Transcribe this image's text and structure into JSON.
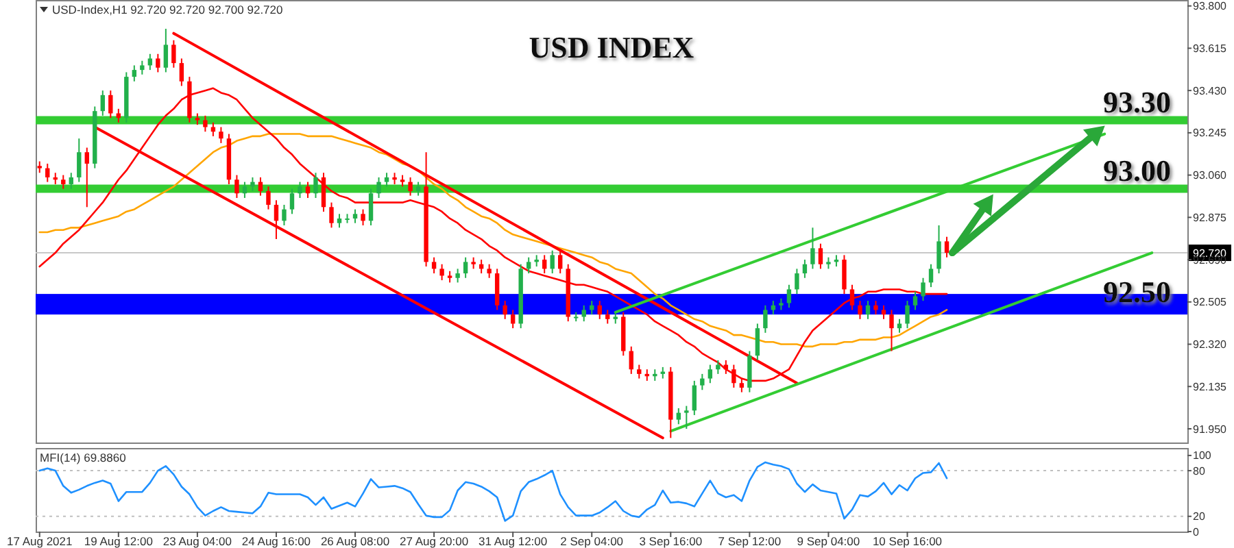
{
  "chart_data": [
    {
      "type": "candlestick",
      "title": "USD INDEX",
      "subtitle": "USD-Index,H1 92.720 92.720 92.700 92.720",
      "categories": [
        null,
        null,
        null,
        null,
        null,
        null,
        null,
        null,
        null,
        null,
        null,
        null,
        null,
        null,
        null,
        null,
        null,
        null,
        null,
        null,
        null,
        null,
        null,
        null,
        null,
        null,
        null,
        null,
        null,
        null,
        null,
        null,
        null,
        null,
        null,
        null,
        null,
        null,
        null,
        null,
        null,
        null,
        null,
        null,
        null,
        null,
        null,
        null,
        null,
        null,
        null,
        null,
        null,
        null,
        null,
        null,
        null,
        null,
        null,
        null,
        null,
        null,
        null,
        null,
        null,
        null,
        null,
        null,
        null,
        null,
        null,
        null,
        null,
        null,
        null,
        null,
        null,
        null,
        null,
        null,
        null,
        null,
        null,
        null,
        null,
        null,
        null,
        null,
        null,
        null,
        null,
        null,
        null,
        null,
        null,
        null,
        null,
        null,
        null,
        null,
        null,
        null,
        null,
        null,
        null,
        null,
        null,
        null,
        null,
        null,
        null,
        null,
        null,
        null,
        null,
        null,
        null,
        null,
        null,
        null,
        null,
        null,
        null,
        null,
        null,
        null,
        null,
        null,
        null,
        null,
        null,
        null,
        null,
        null,
        null,
        null,
        null,
        null,
        null,
        null,
        null,
        null,
        null,
        null,
        null,
        null
      ],
      "ohlc": [
        [
          93.1,
          93.12,
          93.07,
          93.09
        ],
        [
          93.09,
          93.11,
          93.03,
          93.05
        ],
        [
          93.05,
          93.07,
          93.02,
          93.04
        ],
        [
          93.04,
          93.06,
          93.0,
          93.02
        ],
        [
          93.02,
          93.07,
          93.0,
          93.05
        ],
        [
          93.05,
          93.22,
          93.03,
          93.16
        ],
        [
          93.16,
          93.18,
          92.92,
          93.11
        ],
        [
          93.11,
          93.36,
          93.09,
          93.34
        ],
        [
          93.34,
          93.43,
          93.32,
          93.41
        ],
        [
          93.41,
          93.43,
          93.31,
          93.33
        ],
        [
          93.33,
          93.35,
          93.29,
          93.31
        ],
        [
          93.31,
          93.51,
          93.29,
          93.49
        ],
        [
          93.49,
          93.54,
          93.47,
          93.52
        ],
        [
          93.52,
          93.56,
          93.5,
          93.54
        ],
        [
          93.54,
          93.59,
          93.52,
          93.57
        ],
        [
          93.57,
          93.59,
          93.51,
          93.53
        ],
        [
          93.53,
          93.7,
          93.51,
          93.63
        ],
        [
          93.63,
          93.65,
          93.53,
          93.55
        ],
        [
          93.55,
          93.57,
          93.45,
          93.47
        ],
        [
          93.47,
          93.49,
          93.29,
          93.31
        ],
        [
          93.31,
          93.33,
          93.28,
          93.3
        ],
        [
          93.3,
          93.32,
          93.25,
          93.27
        ],
        [
          93.27,
          93.29,
          93.23,
          93.25
        ],
        [
          93.25,
          93.27,
          93.2,
          93.22
        ],
        [
          93.22,
          93.24,
          93.02,
          93.04
        ],
        [
          93.04,
          93.06,
          92.96,
          92.98
        ],
        [
          92.98,
          93.03,
          92.96,
          93.01
        ],
        [
          93.01,
          93.05,
          92.99,
          93.03
        ],
        [
          93.03,
          93.05,
          92.97,
          92.99
        ],
        [
          92.99,
          93.01,
          92.91,
          92.93
        ],
        [
          92.93,
          92.95,
          92.78,
          92.86
        ],
        [
          92.86,
          92.93,
          92.84,
          92.91
        ],
        [
          92.91,
          93.0,
          92.89,
          92.98
        ],
        [
          92.98,
          93.03,
          92.96,
          93.01
        ],
        [
          93.01,
          93.03,
          92.96,
          92.98
        ],
        [
          92.98,
          93.07,
          92.96,
          93.05
        ],
        [
          93.05,
          93.07,
          92.9,
          92.92
        ],
        [
          92.92,
          92.94,
          92.83,
          92.85
        ],
        [
          92.85,
          92.89,
          92.83,
          92.87
        ],
        [
          92.87,
          92.89,
          92.85,
          92.87
        ],
        [
          92.87,
          92.91,
          92.85,
          92.89
        ],
        [
          92.89,
          92.91,
          92.84,
          92.86
        ],
        [
          92.86,
          93.0,
          92.84,
          92.98
        ],
        [
          92.98,
          93.05,
          92.96,
          93.03
        ],
        [
          93.03,
          93.07,
          93.01,
          93.05
        ],
        [
          93.05,
          93.07,
          93.02,
          93.04
        ],
        [
          93.04,
          93.06,
          93.01,
          93.03
        ],
        [
          93.03,
          93.05,
          92.97,
          92.99
        ],
        [
          92.99,
          93.03,
          92.97,
          93.01
        ],
        [
          93.01,
          93.16,
          92.66,
          92.68
        ],
        [
          92.68,
          92.7,
          92.63,
          92.65
        ],
        [
          92.65,
          92.67,
          92.6,
          92.62
        ],
        [
          92.62,
          92.64,
          92.59,
          92.61
        ],
        [
          92.61,
          92.65,
          92.59,
          92.63
        ],
        [
          92.63,
          92.7,
          92.61,
          92.68
        ],
        [
          92.68,
          92.7,
          92.65,
          92.67
        ],
        [
          92.67,
          92.69,
          92.63,
          92.65
        ],
        [
          92.65,
          92.67,
          92.61,
          92.63
        ],
        [
          92.63,
          92.65,
          92.47,
          92.49
        ],
        [
          92.49,
          92.51,
          92.43,
          92.45
        ],
        [
          92.45,
          92.47,
          92.39,
          92.41
        ],
        [
          92.41,
          92.67,
          92.39,
          92.65
        ],
        [
          92.65,
          92.7,
          92.63,
          92.68
        ],
        [
          92.68,
          92.71,
          92.66,
          92.69
        ],
        [
          92.69,
          92.71,
          92.63,
          92.65
        ],
        [
          92.65,
          92.73,
          92.63,
          92.71
        ],
        [
          92.71,
          92.73,
          92.63,
          92.65
        ],
        [
          92.65,
          92.67,
          92.42,
          92.44
        ],
        [
          92.44,
          92.46,
          92.42,
          92.44
        ],
        [
          92.44,
          92.49,
          92.42,
          92.47
        ],
        [
          92.47,
          92.51,
          92.45,
          92.49
        ],
        [
          92.49,
          92.51,
          92.43,
          92.45
        ],
        [
          92.45,
          92.47,
          92.41,
          92.43
        ],
        [
          92.43,
          92.46,
          92.41,
          92.44
        ],
        [
          92.44,
          92.46,
          92.27,
          92.29
        ],
        [
          92.29,
          92.31,
          92.19,
          92.21
        ],
        [
          92.21,
          92.23,
          92.17,
          92.19
        ],
        [
          92.19,
          92.21,
          92.16,
          92.18
        ],
        [
          92.18,
          92.21,
          92.16,
          92.19
        ],
        [
          92.19,
          92.22,
          92.17,
          92.2
        ],
        [
          92.2,
          92.22,
          91.91,
          91.99
        ],
        [
          91.99,
          92.04,
          91.97,
          92.02
        ],
        [
          92.02,
          92.05,
          91.95,
          92.03
        ],
        [
          92.03,
          92.16,
          92.01,
          92.14
        ],
        [
          92.14,
          92.19,
          92.12,
          92.17
        ],
        [
          92.17,
          92.23,
          92.15,
          92.21
        ],
        [
          92.21,
          92.25,
          92.19,
          92.23
        ],
        [
          92.23,
          92.25,
          92.19,
          92.21
        ],
        [
          92.21,
          92.23,
          92.13,
          92.15
        ],
        [
          92.15,
          92.17,
          92.11,
          92.13
        ],
        [
          92.13,
          92.29,
          92.11,
          92.27
        ],
        [
          92.27,
          92.41,
          92.25,
          92.39
        ],
        [
          92.39,
          92.49,
          92.37,
          92.47
        ],
        [
          92.47,
          92.51,
          92.45,
          92.49
        ],
        [
          92.49,
          92.52,
          92.47,
          92.5
        ],
        [
          92.5,
          92.58,
          92.48,
          92.56
        ],
        [
          92.56,
          92.65,
          92.54,
          92.63
        ],
        [
          92.63,
          92.69,
          92.61,
          92.67
        ],
        [
          92.67,
          92.83,
          92.65,
          92.74
        ],
        [
          92.74,
          92.76,
          92.65,
          92.67
        ],
        [
          92.67,
          92.7,
          92.65,
          92.68
        ],
        [
          92.68,
          92.71,
          92.66,
          92.69
        ],
        [
          92.69,
          92.71,
          92.54,
          92.56
        ],
        [
          92.56,
          92.58,
          92.47,
          92.49
        ],
        [
          92.49,
          92.51,
          92.43,
          92.45
        ],
        [
          92.45,
          92.51,
          92.43,
          92.49
        ],
        [
          92.49,
          92.51,
          92.45,
          92.47
        ],
        [
          92.47,
          92.49,
          92.43,
          92.45
        ],
        [
          92.45,
          92.47,
          92.29,
          92.39
        ],
        [
          92.39,
          92.43,
          92.37,
          92.41
        ],
        [
          92.41,
          92.51,
          92.39,
          92.49
        ],
        [
          92.49,
          92.55,
          92.47,
          92.53
        ],
        [
          92.53,
          92.61,
          92.51,
          92.59
        ],
        [
          92.59,
          92.67,
          92.57,
          92.65
        ],
        [
          92.65,
          92.84,
          92.63,
          92.77
        ],
        [
          92.77,
          92.79,
          92.7,
          92.72
        ],
        null,
        null,
        null,
        null,
        null,
        null,
        null,
        null,
        null,
        null,
        null,
        null,
        null,
        null,
        null,
        null,
        null,
        null,
        null,
        null,
        null,
        null,
        null,
        null,
        null,
        null,
        null,
        null,
        null,
        null
      ],
      "series": [
        {
          "type": "line",
          "color": "#ffa500",
          "values": [
            92.81,
            92.81,
            92.82,
            92.82,
            92.83,
            92.83,
            92.84,
            92.85,
            92.86,
            92.87,
            92.88,
            92.9,
            92.91,
            92.93,
            92.95,
            92.97,
            92.99,
            93.01,
            93.04,
            93.07,
            93.1,
            93.13,
            93.16,
            93.18,
            93.19,
            93.21,
            93.22,
            93.23,
            93.23,
            93.24,
            93.24,
            93.24,
            93.24,
            93.24,
            93.23,
            93.23,
            93.23,
            93.23,
            93.22,
            93.21,
            93.2,
            93.19,
            93.18,
            93.16,
            93.15,
            93.13,
            93.11,
            93.1,
            93.08,
            93.05,
            93.02,
            93.0,
            92.97,
            92.95,
            92.92,
            92.9,
            92.88,
            92.87,
            92.85,
            92.82,
            92.8,
            92.79,
            92.78,
            92.77,
            92.76,
            92.75,
            92.74,
            92.73,
            92.72,
            92.71,
            92.7,
            92.68,
            92.67,
            92.65,
            92.64,
            92.63,
            92.6,
            92.57,
            92.54,
            92.52,
            92.49,
            92.47,
            92.45,
            92.43,
            92.42,
            92.4,
            92.39,
            92.38,
            92.36,
            92.36,
            92.35,
            92.34,
            92.33,
            92.33,
            92.32,
            92.32,
            92.32,
            92.31,
            92.31,
            92.32,
            92.32,
            92.32,
            92.33,
            92.33,
            92.34,
            92.34,
            92.34,
            92.35,
            92.35,
            92.36,
            92.38,
            92.4,
            92.42,
            92.44,
            92.45,
            92.47,
            null,
            null,
            null,
            null,
            null,
            null,
            null,
            null,
            null,
            null,
            null,
            null,
            null,
            null,
            null,
            null,
            null,
            null,
            null,
            null,
            null,
            null,
            null,
            null,
            null,
            null,
            null,
            null,
            null,
            null
          ]
        },
        {
          "type": "line",
          "color": "#ff0000",
          "values": [
            92.66,
            92.69,
            92.72,
            92.76,
            92.79,
            92.82,
            92.86,
            92.9,
            92.94,
            92.99,
            93.04,
            93.08,
            93.13,
            93.18,
            93.23,
            93.28,
            93.32,
            93.35,
            93.39,
            93.41,
            93.42,
            93.43,
            93.44,
            93.42,
            93.41,
            93.39,
            93.35,
            93.31,
            93.28,
            93.25,
            93.22,
            93.18,
            93.15,
            93.11,
            93.08,
            93.05,
            93.02,
            92.99,
            92.97,
            92.96,
            92.94,
            92.94,
            92.94,
            92.94,
            92.94,
            92.94,
            92.94,
            92.95,
            92.94,
            92.93,
            92.92,
            92.9,
            92.87,
            92.85,
            92.82,
            92.8,
            92.78,
            92.75,
            92.73,
            92.7,
            92.68,
            92.66,
            92.64,
            92.63,
            92.62,
            92.61,
            92.6,
            92.59,
            92.58,
            92.58,
            92.57,
            92.56,
            92.55,
            92.53,
            92.51,
            92.49,
            92.47,
            92.45,
            92.42,
            92.4,
            92.38,
            92.36,
            92.33,
            92.31,
            92.28,
            92.26,
            92.24,
            92.21,
            92.19,
            92.17,
            92.16,
            92.16,
            92.16,
            92.17,
            92.19,
            92.21,
            92.27,
            92.33,
            92.38,
            92.41,
            92.44,
            92.47,
            92.5,
            92.52,
            92.53,
            92.55,
            92.55,
            92.56,
            92.56,
            92.56,
            92.55,
            92.55,
            92.54,
            92.54,
            92.54,
            92.54,
            null,
            null,
            null,
            null,
            null,
            null,
            null,
            null,
            null,
            null,
            null,
            null,
            null,
            null,
            null,
            null,
            null,
            null,
            null,
            null,
            null,
            null,
            null,
            null,
            null,
            null,
            null,
            null,
            null,
            null
          ]
        },
        {
          "type": "line",
          "color": "#ff0000",
          "values": [
            null,
            null,
            null,
            null,
            null,
            null,
            null,
            null,
            null,
            null,
            null,
            null,
            null,
            null,
            null,
            null,
            null,
            93.68,
            null,
            null,
            null,
            null,
            null,
            null,
            null,
            null,
            null,
            null,
            null,
            null,
            null,
            null,
            null,
            null,
            null,
            null,
            null,
            null,
            null,
            null,
            null,
            null,
            null,
            null,
            null,
            null,
            null,
            null,
            null,
            null,
            null,
            null,
            null,
            null,
            null,
            null,
            null,
            null,
            null,
            null,
            null,
            null,
            null,
            null,
            null,
            null,
            null,
            null,
            null,
            null,
            null,
            null,
            null,
            null,
            null,
            null,
            null,
            null,
            null,
            null,
            null,
            null,
            null,
            null,
            null,
            null,
            null,
            null,
            null,
            null,
            null,
            null,
            null,
            null,
            null,
            null,
            92.15,
            null,
            null,
            null,
            null,
            null,
            null,
            null,
            null,
            null,
            null,
            null,
            null,
            null,
            null,
            null,
            null,
            null,
            null,
            null,
            null,
            null,
            null,
            null,
            null,
            null,
            null,
            null,
            null,
            null,
            null,
            null,
            null,
            null,
            null,
            null,
            null,
            null,
            null,
            null,
            null,
            null,
            null,
            null,
            null,
            null,
            null,
            null,
            null,
            null
          ]
        },
        {
          "type": "line",
          "color": "#ff0000",
          "values": [
            null,
            null,
            null,
            null,
            null,
            null,
            null,
            93.27,
            null,
            null,
            null,
            null,
            null,
            null,
            null,
            null,
            null,
            null,
            null,
            null,
            null,
            null,
            null,
            null,
            null,
            null,
            null,
            null,
            null,
            null,
            null,
            null,
            null,
            null,
            null,
            null,
            null,
            null,
            null,
            null,
            null,
            null,
            null,
            null,
            null,
            null,
            null,
            null,
            null,
            null,
            null,
            null,
            null,
            null,
            null,
            null,
            null,
            null,
            null,
            null,
            null,
            null,
            null,
            null,
            null,
            null,
            null,
            null,
            null,
            null,
            null,
            null,
            null,
            null,
            null,
            null,
            null,
            null,
            null,
            91.91,
            null,
            null,
            null,
            null,
            null,
            null,
            null,
            null,
            null,
            null,
            null,
            null,
            null,
            null,
            null,
            null,
            null,
            null,
            null,
            null,
            null,
            null,
            null,
            null,
            null,
            null,
            null,
            null,
            null,
            null,
            null,
            null,
            null,
            null,
            null,
            null,
            null,
            null,
            null,
            null,
            null,
            null,
            null,
            null,
            null,
            null,
            null,
            null,
            null,
            null,
            null,
            null,
            null,
            null,
            null,
            null,
            null,
            null,
            null,
            null,
            null,
            null,
            null,
            null,
            null,
            null
          ]
        },
        {
          "type": "line",
          "color": "#33cc33",
          "values": [
            null,
            null,
            null,
            null,
            null,
            null,
            null,
            null,
            null,
            null,
            null,
            null,
            null,
            null,
            null,
            null,
            null,
            null,
            null,
            null,
            null,
            null,
            null,
            null,
            null,
            null,
            null,
            null,
            null,
            null,
            null,
            null,
            null,
            null,
            null,
            null,
            null,
            null,
            null,
            null,
            null,
            null,
            null,
            null,
            null,
            null,
            null,
            null,
            null,
            null,
            null,
            null,
            null,
            null,
            null,
            null,
            null,
            null,
            null,
            null,
            null,
            null,
            null,
            null,
            null,
            null,
            null,
            null,
            null,
            null,
            null,
            null,
            null,
            92.46,
            null,
            null,
            null,
            null,
            null,
            null,
            null,
            null,
            null,
            null,
            null,
            null,
            null,
            null,
            null,
            null,
            null,
            null,
            null,
            null,
            null,
            null,
            null,
            null,
            null,
            null,
            null,
            null,
            null,
            null,
            null,
            null,
            null,
            null,
            null,
            null,
            null,
            null,
            null,
            null,
            null,
            null,
            null,
            null,
            null,
            null,
            null,
            null,
            null,
            null,
            null,
            null,
            null,
            null,
            null,
            null,
            null,
            null,
            null,
            null,
            null,
            93.24,
            null,
            null,
            null,
            null,
            null,
            null,
            null,
            null,
            null,
            null
          ]
        },
        {
          "type": "line",
          "color": "#33cc33",
          "values": [
            null,
            null,
            null,
            null,
            null,
            null,
            null,
            null,
            null,
            null,
            null,
            null,
            null,
            null,
            null,
            null,
            null,
            null,
            null,
            null,
            null,
            null,
            null,
            null,
            null,
            null,
            null,
            null,
            null,
            null,
            null,
            null,
            null,
            null,
            null,
            null,
            null,
            null,
            null,
            null,
            null,
            null,
            null,
            null,
            null,
            null,
            null,
            null,
            null,
            null,
            null,
            null,
            null,
            null,
            null,
            null,
            null,
            null,
            null,
            null,
            null,
            null,
            null,
            null,
            null,
            null,
            null,
            null,
            null,
            null,
            null,
            null,
            null,
            null,
            null,
            null,
            null,
            null,
            null,
            null,
            91.94,
            null,
            null,
            null,
            null,
            null,
            null,
            null,
            null,
            null,
            null,
            null,
            null,
            null,
            null,
            null,
            null,
            null,
            null,
            null,
            null,
            null,
            null,
            null,
            null,
            null,
            null,
            null,
            null,
            null,
            null,
            null,
            null,
            null,
            null,
            null,
            null,
            null,
            null,
            null,
            null,
            null,
            null,
            null,
            null,
            null,
            null,
            null,
            null,
            null,
            null,
            null,
            null,
            null,
            null,
            null,
            null,
            null,
            null,
            null,
            null,
            92.72,
            null,
            null,
            null,
            null
          ]
        }
      ],
      "ref_lines": [
        {
          "axis": "y",
          "value": 93.3,
          "label": "93.30",
          "color": "#33cc33"
        },
        {
          "axis": "y",
          "value": 93.0,
          "label": "93.00",
          "color": "#33cc33"
        },
        {
          "axis": "y",
          "value": 92.72,
          "label": "92.720",
          "color": "#c8c8c8",
          "line_style": "solid"
        }
      ],
      "bands": [
        {
          "axis": "y",
          "from": 92.45,
          "to": 92.54,
          "label": "92.50",
          "color": "#0000ff"
        }
      ],
      "ylim": [
        91.89,
        93.82
      ],
      "yticks": [
        {
          "value": 93.8,
          "label": "93.800"
        },
        {
          "value": 93.615,
          "label": "93.615"
        },
        {
          "value": 93.43,
          "label": "93.430"
        },
        {
          "value": 93.245,
          "label": "93.245"
        },
        {
          "value": 93.06,
          "label": "93.060"
        },
        {
          "value": 92.875,
          "label": "92.875"
        },
        {
          "value": 92.69,
          "label": "92.690"
        },
        {
          "value": 92.505,
          "label": "92.505"
        },
        {
          "value": 92.32,
          "label": "92.320"
        },
        {
          "value": 92.135,
          "label": "92.135"
        },
        {
          "value": 91.95,
          "label": "91.950"
        }
      ],
      "tick_labels": "y"
    },
    {
      "type": "line",
      "title": "MFI(14) 69.8860",
      "categories": [
        "17 Aug 2021",
        null,
        null,
        null,
        null,
        null,
        null,
        null,
        null,
        null,
        "19 Aug 12:00",
        null,
        null,
        null,
        null,
        null,
        null,
        null,
        null,
        null,
        "23 Aug 04:00",
        null,
        null,
        null,
        null,
        null,
        null,
        null,
        null,
        null,
        "24 Aug 16:00",
        null,
        null,
        null,
        null,
        null,
        null,
        null,
        null,
        null,
        "26 Aug 08:00",
        null,
        null,
        null,
        null,
        null,
        null,
        null,
        null,
        null,
        "27 Aug 20:00",
        null,
        null,
        null,
        null,
        null,
        null,
        null,
        null,
        null,
        "31 Aug 12:00",
        null,
        null,
        null,
        null,
        null,
        null,
        null,
        null,
        null,
        "2 Sep 04:00",
        null,
        null,
        null,
        null,
        null,
        null,
        null,
        null,
        null,
        "3 Sep 16:00",
        null,
        null,
        null,
        null,
        null,
        null,
        null,
        null,
        null,
        "7 Sep 12:00",
        null,
        null,
        null,
        null,
        null,
        null,
        null,
        null,
        null,
        "9 Sep 04:00",
        null,
        null,
        null,
        null,
        null,
        null,
        null,
        null,
        null,
        "10 Sep 16:00",
        null,
        null,
        null,
        null,
        null,
        null,
        null,
        null,
        null,
        null,
        null,
        null,
        null,
        null,
        null,
        null,
        null,
        null,
        null,
        null,
        null,
        null,
        null,
        null,
        null,
        null,
        null,
        null,
        null,
        null,
        null,
        null,
        null,
        null,
        null
      ],
      "series": [
        {
          "color": "#1e90ff",
          "values": [
            80,
            83,
            80,
            60,
            51,
            55,
            60,
            64,
            67,
            63,
            40,
            52,
            52,
            52,
            64,
            80,
            86,
            75,
            59,
            49,
            32,
            21,
            27,
            32,
            27,
            26,
            25,
            24,
            33,
            51,
            49,
            49,
            49,
            49,
            45,
            35,
            45,
            30,
            34,
            38,
            33,
            50,
            69,
            58,
            59,
            60,
            57,
            52,
            36,
            21,
            19,
            19,
            28,
            54,
            65,
            63,
            59,
            53,
            45,
            14,
            21,
            53,
            65,
            69,
            74,
            80,
            49,
            32,
            21,
            21,
            21,
            25,
            32,
            40,
            27,
            21,
            19,
            29,
            35,
            54,
            38,
            39,
            37,
            33,
            50,
            67,
            50,
            45,
            48,
            40,
            67,
            85,
            91,
            88,
            86,
            82,
            63,
            52,
            62,
            54,
            52,
            50,
            17,
            29,
            48,
            46,
            53,
            64,
            49,
            61,
            54,
            70,
            77,
            78,
            90,
            70,
            null,
            null,
            null,
            null,
            null,
            null,
            null,
            null,
            null,
            null,
            null,
            null,
            null,
            null,
            null,
            null,
            null,
            null,
            null,
            null,
            null,
            null,
            null,
            null,
            null,
            null,
            null,
            null,
            null,
            null
          ]
        }
      ],
      "ref_lines": [
        {
          "axis": "y",
          "value": 20,
          "color": "#c0c0c0",
          "line_style": "dotted"
        },
        {
          "axis": "y",
          "value": 80,
          "color": "#c0c0c0",
          "line_style": "dotted"
        }
      ],
      "ylim": [
        0,
        108
      ],
      "yticks": [
        0,
        20,
        80,
        100
      ]
    }
  ]
}
